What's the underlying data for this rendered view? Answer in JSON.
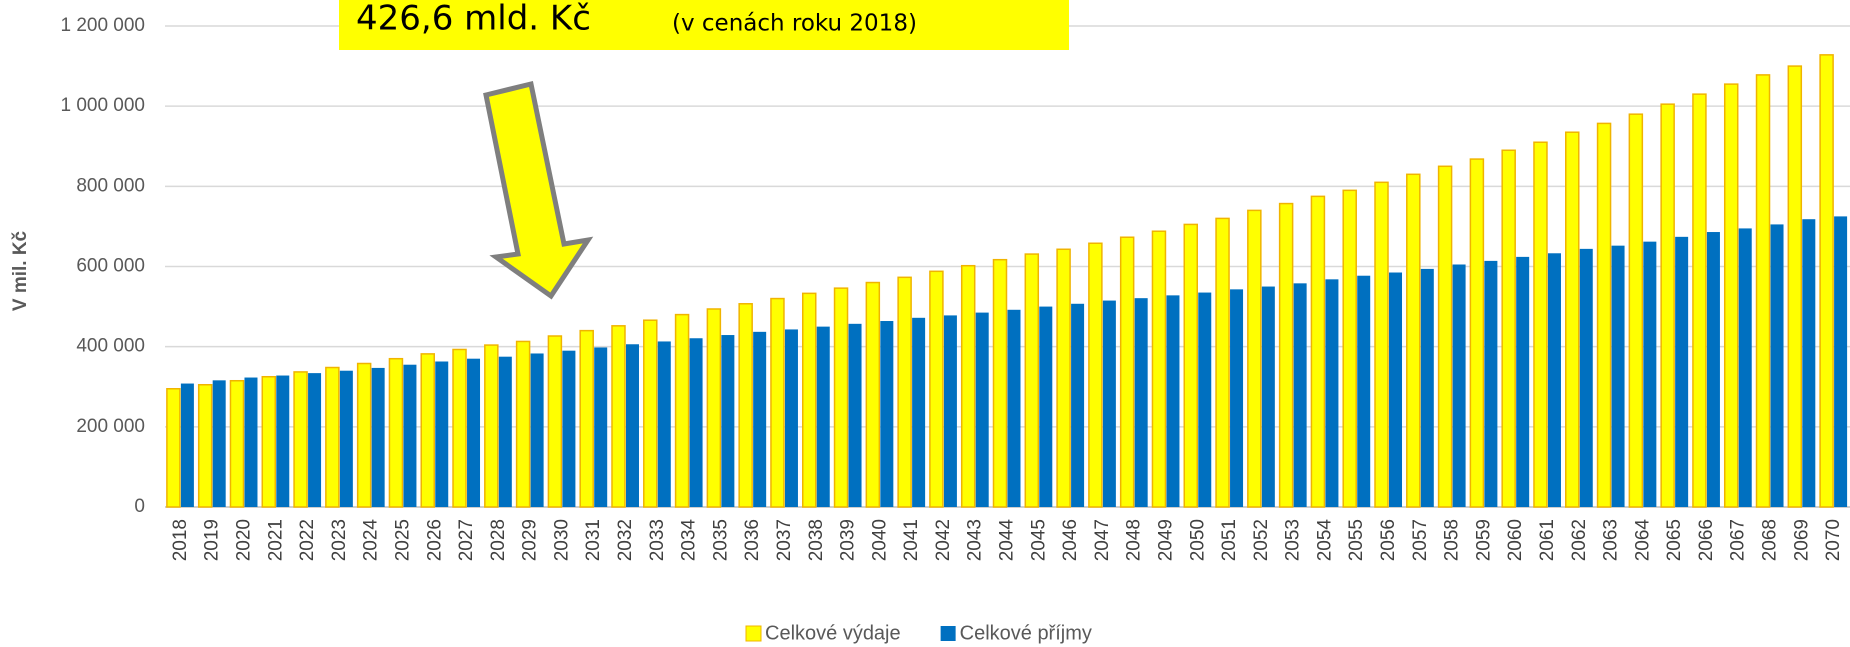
{
  "chart_data": {
    "type": "bar",
    "annotations": [
      "426,6 mld. Kč",
      "(v cenách roku 2018)"
    ],
    "ylabel": "V mil. Kč",
    "categories": [
      "2018",
      "2019",
      "2020",
      "2021",
      "2022",
      "2023",
      "2024",
      "2025",
      "2026",
      "2027",
      "2028",
      "2029",
      "2030",
      "2031",
      "2032",
      "2033",
      "2034",
      "2035",
      "2036",
      "2037",
      "2038",
      "2039",
      "2040",
      "2041",
      "2042",
      "2043",
      "2044",
      "2045",
      "2046",
      "2047",
      "2048",
      "2049",
      "2050",
      "2051",
      "2052",
      "2053",
      "2054",
      "2055",
      "2056",
      "2057",
      "2058",
      "2059",
      "2060",
      "2061",
      "2062",
      "2063",
      "2064",
      "2065",
      "2066",
      "2067",
      "2068",
      "2069",
      "2070"
    ],
    "series": [
      {
        "name": "Celkové výdaje",
        "color": "#ffff00",
        "values": [
          295000,
          305000,
          315000,
          325000,
          337000,
          348000,
          358000,
          370000,
          382000,
          393000,
          404000,
          413000,
          426600,
          440000,
          452000,
          466000,
          480000,
          494000,
          507000,
          520000,
          533000,
          546000,
          560000,
          573000,
          588000,
          602000,
          617000,
          631000,
          643000,
          658000,
          673000,
          688000,
          705000,
          720000,
          740000,
          757000,
          775000,
          790000,
          810000,
          830000,
          850000,
          868000,
          890000,
          910000,
          935000,
          957000,
          980000,
          1005000,
          1030000,
          1055000,
          1078000,
          1100000,
          1128000
        ]
      },
      {
        "name": "Celkové příjmy",
        "color": "#0070c0",
        "values": [
          308000,
          316000,
          323000,
          328000,
          334000,
          340000,
          347000,
          355000,
          363000,
          370000,
          375000,
          383000,
          390000,
          398000,
          406000,
          413000,
          421000,
          429000,
          437000,
          443000,
          450000,
          457000,
          464000,
          472000,
          478000,
          485000,
          492000,
          500000,
          507000,
          515000,
          521000,
          528000,
          535000,
          543000,
          550000,
          558000,
          568000,
          577000,
          585000,
          594000,
          605000,
          614000,
          624000,
          633000,
          644000,
          652000,
          662000,
          674000,
          686000,
          695000,
          705000,
          718000,
          725000
        ]
      }
    ],
    "ylim": [
      0,
      1200000
    ],
    "yticks": [
      0,
      {
        "value": 200000,
        "label": "200 000"
      },
      {
        "value": 400000,
        "label": "400 000"
      },
      {
        "value": 600000,
        "label": "600 000"
      },
      {
        "value": 800000,
        "label": "800 000"
      },
      {
        "value": 1000000,
        "label": "1 000 000"
      },
      {
        "value": 1200000,
        "label": "1 200 000"
      }
    ],
    "grid": true,
    "legend": "bottom"
  }
}
